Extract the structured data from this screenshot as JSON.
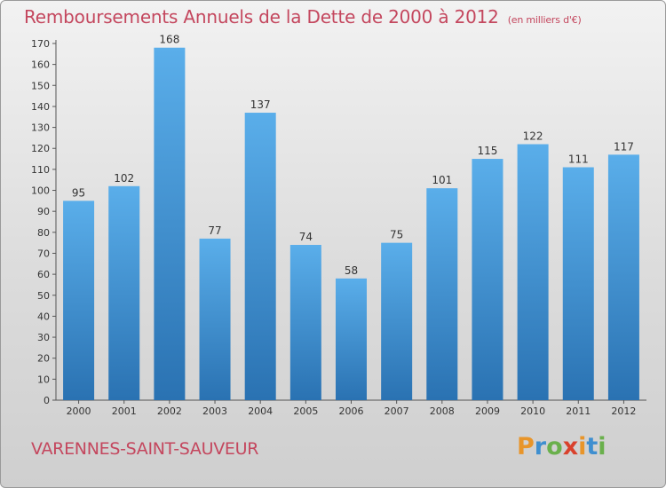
{
  "title": "Remboursements Annuels de la Dette de 2000 à 2012",
  "unit_note": "(en milliers d'€)",
  "commune": "VARENNES-SAINT-SAUVEUR",
  "brand": {
    "letters": [
      "P",
      "r",
      "o",
      "x",
      "i",
      "t",
      "i"
    ],
    "colors": [
      "#e8952a",
      "#3f8fd0",
      "#6ab04c",
      "#d9412c",
      "#e8952a",
      "#3f8fd0",
      "#6ab04c"
    ]
  },
  "colors": {
    "bar_top": "#5aaeea",
    "bar_bottom": "#2a72b2",
    "title": "#c4475e"
  },
  "chart_data": {
    "type": "bar",
    "categories": [
      "2000",
      "2001",
      "2002",
      "2003",
      "2004",
      "2005",
      "2006",
      "2007",
      "2008",
      "2009",
      "2010",
      "2011",
      "2012"
    ],
    "values": [
      95,
      102,
      168,
      77,
      137,
      74,
      58,
      75,
      101,
      115,
      122,
      111,
      117
    ],
    "ylim": [
      0,
      170
    ],
    "yticks": [
      0,
      10,
      20,
      30,
      40,
      50,
      60,
      70,
      80,
      90,
      100,
      110,
      120,
      130,
      140,
      150,
      160,
      170
    ],
    "grid": false,
    "legend": "none"
  }
}
